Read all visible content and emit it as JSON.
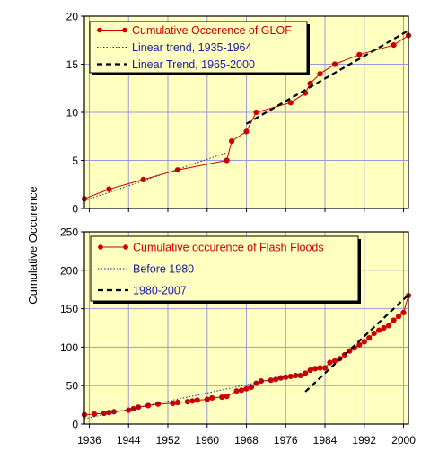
{
  "chart_data": [
    {
      "type": "line",
      "ylabel": "Cumulative Occurence",
      "xlim": [
        1935,
        2001
      ],
      "ylim": [
        0,
        20
      ],
      "yticks": [
        0,
        5,
        10,
        15,
        20
      ],
      "xticks": [
        1936,
        1944,
        1952,
        1960,
        1968,
        1976,
        1984,
        1992,
        2000
      ],
      "grid": true,
      "background": "#ffffc0",
      "legend_position": "top-left",
      "series": [
        {
          "name": "Cumulative Occerence of GLOF",
          "style": "line-markers",
          "color": "#cc0000",
          "x": [
            1935,
            1940,
            1947,
            1954,
            1964,
            1965,
            1968,
            1970,
            1977,
            1980,
            1981,
            1983,
            1986,
            1991,
            1998,
            2001
          ],
          "y": [
            1,
            2,
            3,
            4,
            5,
            7,
            8,
            10,
            11,
            12,
            13,
            14,
            15,
            16,
            17,
            18
          ]
        },
        {
          "name": "Linear trend, 1935-1964",
          "style": "dotted",
          "color": "#333333",
          "x": [
            1935,
            1964
          ],
          "y": [
            0.8,
            5.8
          ]
        },
        {
          "name": "Linear Trend, 1965-2000",
          "style": "dashed",
          "color": "#000000",
          "x": [
            1968,
            2001
          ],
          "y": [
            8.8,
            18.5
          ]
        }
      ]
    },
    {
      "type": "line",
      "ylabel": "Cumulative Occurence",
      "xlim": [
        1935,
        2001
      ],
      "ylim": [
        0,
        250
      ],
      "yticks": [
        0,
        50,
        100,
        150,
        200,
        250
      ],
      "xticks": [
        1936,
        1944,
        1952,
        1960,
        1968,
        1976,
        1984,
        1992,
        2000
      ],
      "xticklabels": [
        "1936",
        "1944",
        "1952",
        "1960",
        "1968",
        "1976",
        "1984",
        "1992",
        "2000"
      ],
      "grid": true,
      "background": "#ffffc0",
      "legend_position": "top-left",
      "series": [
        {
          "name": "Cumulative occurence of Flash Floods",
          "style": "line-markers",
          "color": "#cc0000",
          "x": [
            1935,
            1937,
            1939,
            1940,
            1941,
            1944,
            1945,
            1946,
            1948,
            1950,
            1953,
            1954,
            1956,
            1957,
            1958,
            1960,
            1961,
            1963,
            1964,
            1966,
            1967,
            1968,
            1969,
            1970,
            1971,
            1973,
            1974,
            1975,
            1976,
            1977,
            1978,
            1979,
            1980,
            1981,
            1982,
            1983,
            1984,
            1985,
            1986,
            1987,
            1988,
            1989,
            1990,
            1991,
            1992,
            1993,
            1994,
            1995,
            1996,
            1997,
            1998,
            1999,
            2000,
            2001
          ],
          "y": [
            12,
            13,
            14,
            15,
            16,
            18,
            20,
            22,
            24,
            26,
            27,
            28,
            29,
            30,
            31,
            32,
            34,
            35,
            36,
            43,
            44,
            46,
            48,
            53,
            56,
            57,
            58,
            60,
            61,
            62,
            63,
            63,
            66,
            70,
            72,
            73,
            73,
            80,
            82,
            85,
            90,
            95,
            99,
            103,
            107,
            112,
            118,
            122,
            125,
            128,
            135,
            140,
            145,
            167
          ]
        },
        {
          "name": "Before 1980",
          "style": "dotted",
          "color": "#1a1aa0",
          "x": [
            1935,
            1980
          ],
          "y": [
            7,
            67
          ]
        },
        {
          "name": "1980-2007",
          "style": "dashed",
          "color": "#000000",
          "x": [
            1980,
            2001
          ],
          "y": [
            42,
            168
          ]
        }
      ]
    }
  ]
}
